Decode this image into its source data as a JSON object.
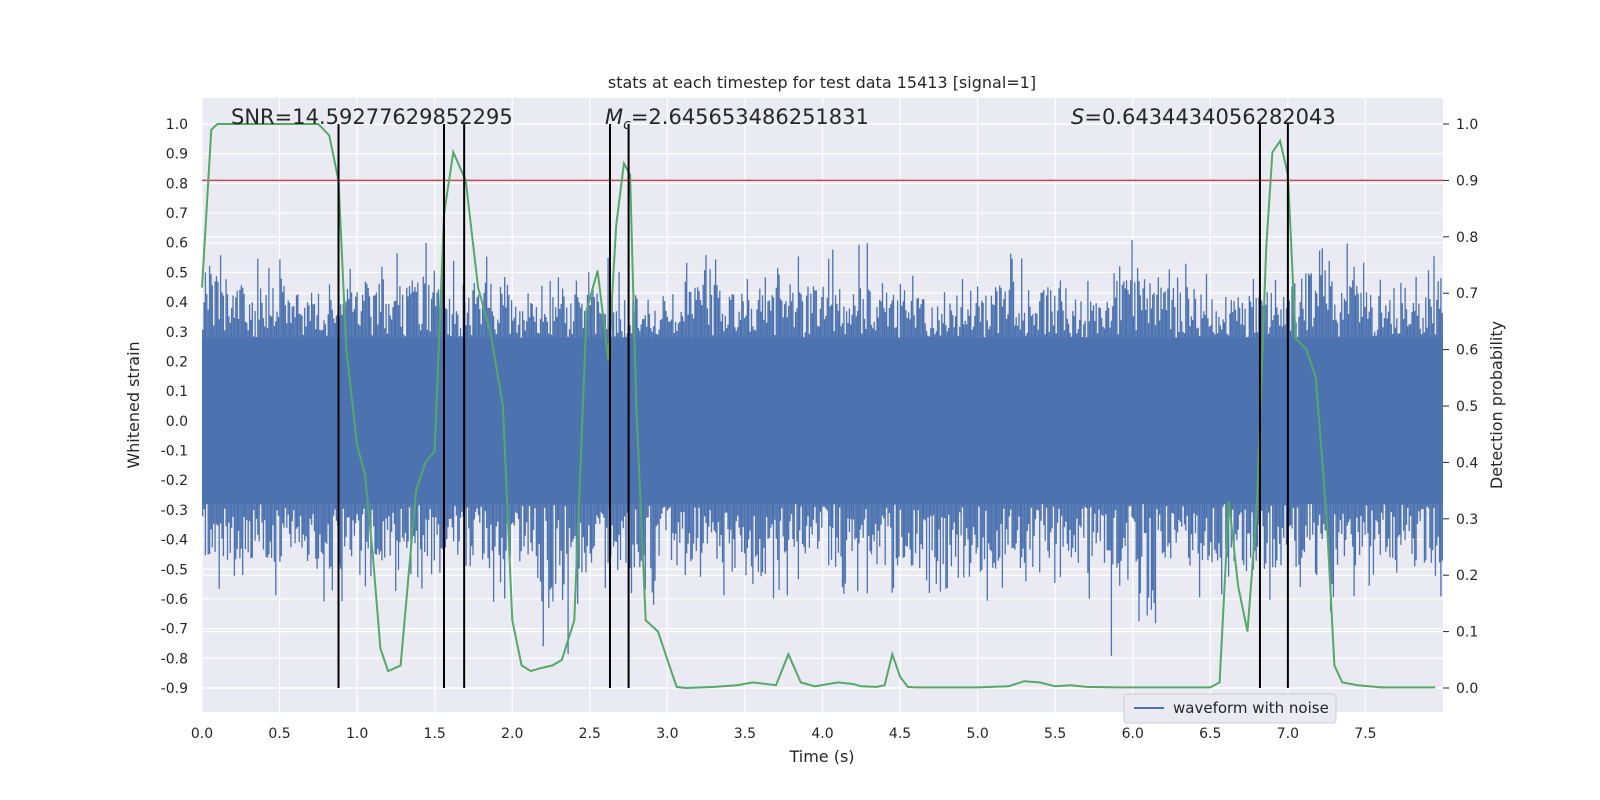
{
  "chart_data": {
    "type": "line",
    "title": "stats at each timestep for test data 15413 [signal=1]",
    "xlabel": "Time (s)",
    "ylabel": "Whitened strain",
    "y2label": "Detection probability",
    "xlim": [
      0.0,
      8.0
    ],
    "ylim": [
      -0.95,
      1.08
    ],
    "y2lim": [
      -0.03,
      1.04
    ],
    "x_ticks": [
      "0.0",
      "0.5",
      "1.0",
      "1.5",
      "2.0",
      "2.5",
      "3.0",
      "3.5",
      "4.0",
      "4.5",
      "5.0",
      "5.5",
      "6.0",
      "6.5",
      "7.0",
      "7.5"
    ],
    "y_ticks": [
      "1.0",
      "0.9",
      "0.8",
      "0.7",
      "0.6",
      "0.5",
      "0.4",
      "0.3",
      "0.2",
      "0.1",
      "0.0",
      "-0.1",
      "-0.2",
      "-0.3",
      "-0.4",
      "-0.5",
      "-0.6",
      "-0.7",
      "-0.8",
      "-0.9"
    ],
    "y2_ticks": [
      "1.0",
      "0.9",
      "0.8",
      "0.7",
      "0.6",
      "0.5",
      "0.4",
      "0.3",
      "0.2",
      "0.1",
      "0.0"
    ],
    "grid": true,
    "legend_position": "lower-right",
    "annotations": {
      "snr": "SNR=14.59277629852295",
      "mc": "=2.645653486251831",
      "mc_symbol": "M",
      "mc_subscript": "c",
      "s": "=0.6434434056282043",
      "s_symbol": "S"
    },
    "threshold": {
      "axis": "y2",
      "value": 0.9,
      "color": "#c44e52"
    },
    "waveform": {
      "name": "waveform with noise",
      "color": "#4c72b0",
      "core_band": [
        -0.28,
        0.28
      ],
      "spike_max": [
        0.62,
        0.55,
        0.48,
        0.55,
        0.6,
        0.57,
        0.52,
        0.5,
        0.55,
        0.45,
        0.58,
        0.52,
        0.56,
        0.6,
        0.5,
        0.48,
        0.58,
        0.55,
        0.5,
        0.62,
        0.55,
        0.5,
        0.52,
        0.63,
        0.55,
        0.58
      ],
      "spike_min": [
        -0.57,
        -0.6,
        -0.62,
        -0.58,
        -0.65,
        -0.6,
        -0.62,
        -0.8,
        -0.6,
        -0.62,
        -0.6,
        -0.66,
        -0.6,
        -0.62,
        -0.6,
        -0.6,
        -0.64,
        -0.6,
        -0.6,
        -0.82,
        -0.6,
        -0.6,
        -0.64,
        -0.65,
        -0.6,
        -0.6
      ]
    },
    "detection": {
      "color": "#55a868",
      "x": [
        0.0,
        0.06,
        0.1,
        0.2,
        0.5,
        0.75,
        0.82,
        0.88,
        0.93,
        1.0,
        1.05,
        1.1,
        1.15,
        1.2,
        1.28,
        1.38,
        1.44,
        1.5,
        1.56,
        1.62,
        1.7,
        1.78,
        1.86,
        1.94,
        2.0,
        2.06,
        2.12,
        2.18,
        2.26,
        2.32,
        2.4,
        2.48,
        2.55,
        2.62,
        2.67,
        2.72,
        2.76,
        2.8,
        2.86,
        2.94,
        3.0,
        3.06,
        3.12,
        3.3,
        3.45,
        3.55,
        3.7,
        3.78,
        3.86,
        3.95,
        4.1,
        4.2,
        4.25,
        4.35,
        4.4,
        4.45,
        4.5,
        4.55,
        4.6,
        4.8,
        5.0,
        5.2,
        5.3,
        5.4,
        5.5,
        5.6,
        5.7,
        5.9,
        6.2,
        6.5,
        6.56,
        6.62,
        6.68,
        6.74,
        6.8,
        6.86,
        6.9,
        6.95,
        7.0,
        7.05,
        7.12,
        7.18,
        7.25,
        7.3,
        7.35,
        7.45,
        7.6,
        7.95
      ],
      "y": [
        0.71,
        0.99,
        1.0,
        1.0,
        1.0,
        1.0,
        0.98,
        0.9,
        0.6,
        0.43,
        0.38,
        0.24,
        0.07,
        0.03,
        0.04,
        0.35,
        0.4,
        0.42,
        0.84,
        0.95,
        0.9,
        0.71,
        0.63,
        0.5,
        0.12,
        0.04,
        0.03,
        0.035,
        0.04,
        0.05,
        0.12,
        0.67,
        0.74,
        0.58,
        0.82,
        0.93,
        0.91,
        0.5,
        0.12,
        0.1,
        0.05,
        0.002,
        0.0,
        0.002,
        0.005,
        0.01,
        0.005,
        0.06,
        0.01,
        0.003,
        0.01,
        0.007,
        0.003,
        0.002,
        0.005,
        0.06,
        0.02,
        0.002,
        0.001,
        0.001,
        0.001,
        0.003,
        0.012,
        0.01,
        0.003,
        0.005,
        0.002,
        0.001,
        0.001,
        0.001,
        0.01,
        0.33,
        0.18,
        0.1,
        0.32,
        0.78,
        0.95,
        0.97,
        0.91,
        0.62,
        0.6,
        0.55,
        0.3,
        0.04,
        0.01,
        0.005,
        0.001,
        0.001
      ]
    },
    "vlines": {
      "color": "#000000",
      "x": [
        0.88,
        1.56,
        1.69,
        2.63,
        2.75,
        6.82,
        7.0
      ]
    }
  }
}
